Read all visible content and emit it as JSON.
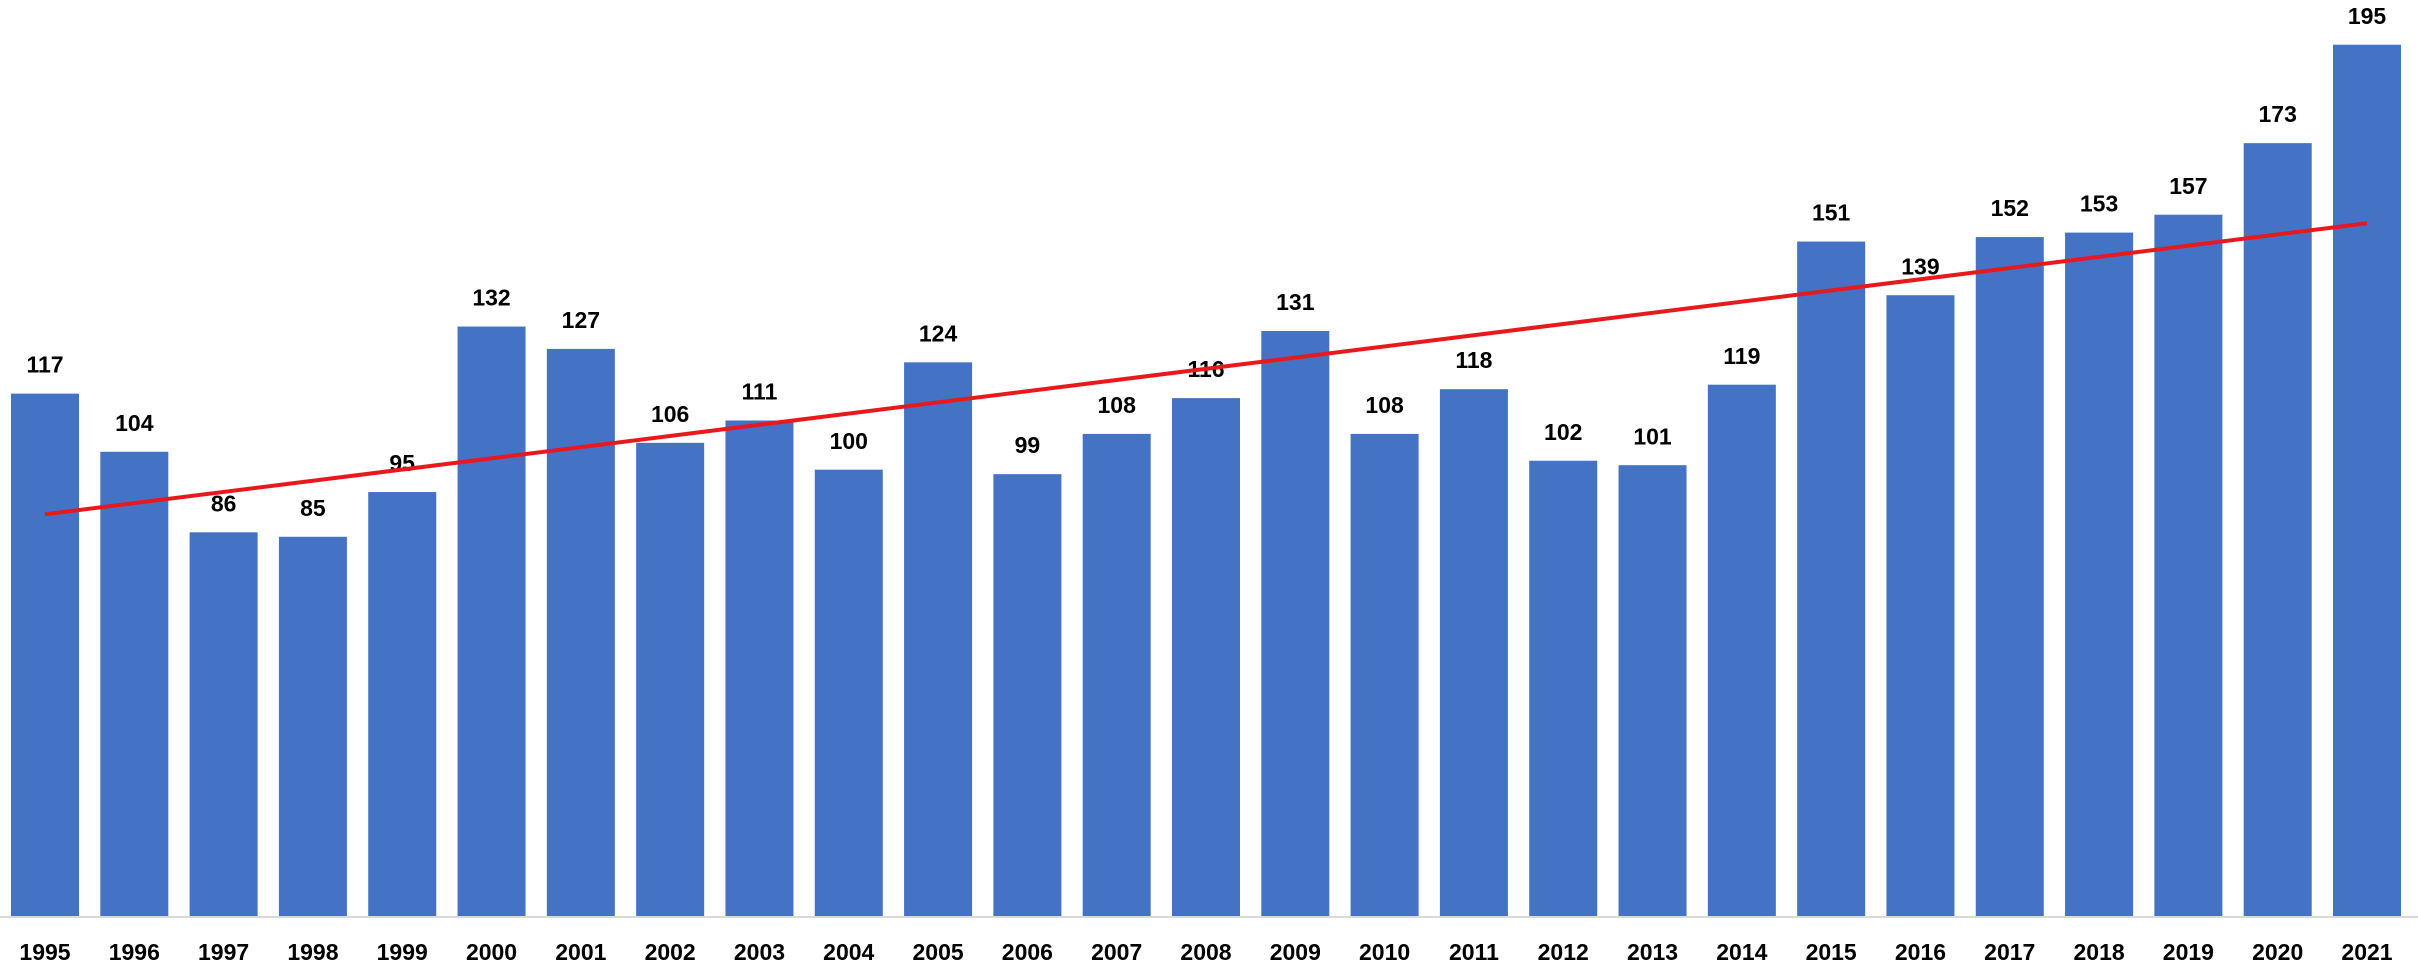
{
  "chart_data": {
    "type": "bar",
    "categories": [
      "1995",
      "1996",
      "1997",
      "1998",
      "1999",
      "2000",
      "2001",
      "2002",
      "2003",
      "2004",
      "2005",
      "2006",
      "2007",
      "2008",
      "2009",
      "2010",
      "2011",
      "2012",
      "2013",
      "2014",
      "2015",
      "2016",
      "2017",
      "2018",
      "2019",
      "2020",
      "2021"
    ],
    "values": [
      117,
      104,
      86,
      85,
      95,
      132,
      127,
      106,
      111,
      100,
      124,
      99,
      108,
      116,
      131,
      108,
      118,
      102,
      101,
      119,
      151,
      139,
      152,
      153,
      157,
      173,
      195
    ],
    "color": "#4472c4",
    "ylim": [
      0,
      205
    ],
    "trendline": true,
    "trend_color": "#e8191c"
  }
}
